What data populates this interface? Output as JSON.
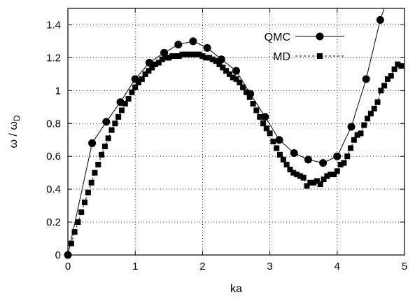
{
  "chart_data": {
    "type": "line",
    "xlabel": "ka",
    "ylabel_main": "ω / ω",
    "ylabel_sub": "D",
    "xlim": [
      0,
      5
    ],
    "ylim": [
      0,
      1.5
    ],
    "xticks": [
      "0",
      "1",
      "2",
      "3",
      "4",
      "5"
    ],
    "yticks": [
      "0",
      "0.2",
      "0.4",
      "0.6",
      "0.8",
      "1",
      "1.2",
      "1.4"
    ],
    "grid": true,
    "legend_position": "top-right",
    "series": [
      {
        "name": "QMC",
        "style": "solid",
        "marker": "circle",
        "x": [
          0.0,
          0.36,
          0.57,
          0.78,
          1.0,
          1.21,
          1.43,
          1.64,
          1.86,
          2.07,
          2.28,
          2.5,
          2.71,
          2.93,
          3.14,
          3.36,
          3.57,
          3.79,
          4.0,
          4.21,
          4.43,
          4.64,
          4.74
        ],
        "y": [
          0.0,
          0.68,
          0.81,
          0.93,
          1.07,
          1.17,
          1.23,
          1.28,
          1.3,
          1.26,
          1.19,
          1.12,
          0.98,
          0.84,
          0.7,
          0.62,
          0.58,
          0.56,
          0.6,
          0.78,
          1.07,
          1.43,
          1.55
        ]
      },
      {
        "name": "MD",
        "style": "dashed",
        "marker": "square",
        "x": [
          0.05,
          0.1,
          0.15,
          0.2,
          0.25,
          0.3,
          0.35,
          0.4,
          0.45,
          0.5,
          0.55,
          0.6,
          0.65,
          0.7,
          0.75,
          0.8,
          0.85,
          0.9,
          0.95,
          1.0,
          1.05,
          1.1,
          1.15,
          1.2,
          1.25,
          1.3,
          1.35,
          1.4,
          1.45,
          1.5,
          1.55,
          1.6,
          1.65,
          1.7,
          1.75,
          1.8,
          1.85,
          1.9,
          1.95,
          2.0,
          2.05,
          2.1,
          2.15,
          2.2,
          2.25,
          2.3,
          2.35,
          2.4,
          2.45,
          2.5,
          2.55,
          2.6,
          2.65,
          2.7,
          2.75,
          2.8,
          2.85,
          2.9,
          2.95,
          3.0,
          3.05,
          3.1,
          3.15,
          3.2,
          3.25,
          3.3,
          3.35,
          3.4,
          3.45,
          3.5,
          3.55,
          3.6,
          3.65,
          3.7,
          3.75,
          3.8,
          3.85,
          3.9,
          3.95,
          4.0,
          4.05,
          4.1,
          4.15,
          4.2,
          4.25,
          4.3,
          4.35,
          4.4,
          4.45,
          4.5,
          4.55,
          4.6,
          4.65,
          4.7,
          4.75,
          4.8,
          4.85,
          4.9,
          4.95
        ],
        "y": [
          0.07,
          0.14,
          0.2,
          0.26,
          0.32,
          0.38,
          0.44,
          0.5,
          0.55,
          0.61,
          0.66,
          0.71,
          0.76,
          0.8,
          0.84,
          0.88,
          0.92,
          0.95,
          0.99,
          1.02,
          1.05,
          1.07,
          1.1,
          1.12,
          1.14,
          1.16,
          1.17,
          1.19,
          1.2,
          1.2,
          1.21,
          1.21,
          1.21,
          1.22,
          1.22,
          1.22,
          1.22,
          1.22,
          1.22,
          1.21,
          1.2,
          1.2,
          1.19,
          1.18,
          1.16,
          1.14,
          1.12,
          1.1,
          1.08,
          1.07,
          1.05,
          1.02,
          0.99,
          0.96,
          0.92,
          0.88,
          0.84,
          0.8,
          0.77,
          0.74,
          0.69,
          0.65,
          0.61,
          0.58,
          0.55,
          0.52,
          0.5,
          0.49,
          0.48,
          0.47,
          0.42,
          0.44,
          0.44,
          0.45,
          0.43,
          0.46,
          0.48,
          0.49,
          0.49,
          0.51,
          0.55,
          0.56,
          0.6,
          0.65,
          0.7,
          0.73,
          0.74,
          0.79,
          0.83,
          0.86,
          0.89,
          0.93,
          1.0,
          1.03,
          1.07,
          1.09,
          1.13,
          1.16,
          1.15
        ]
      }
    ]
  }
}
